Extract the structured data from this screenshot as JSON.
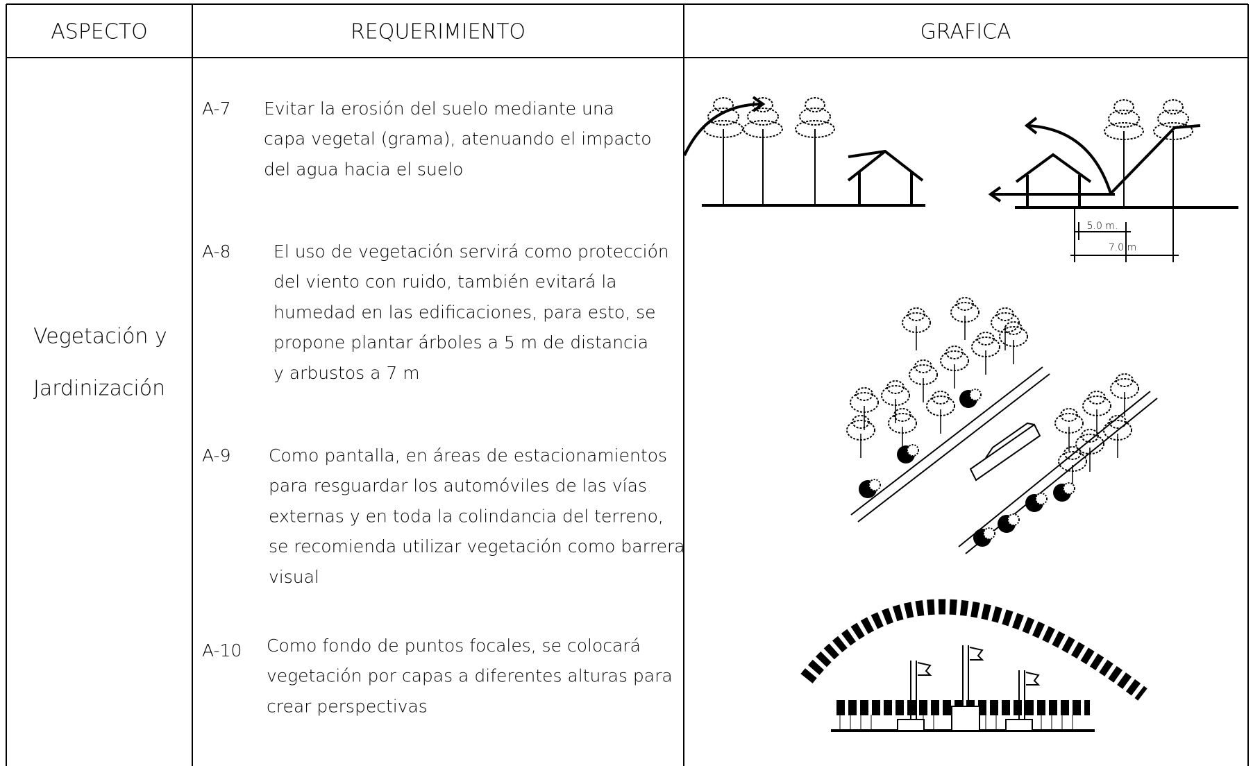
{
  "header": {
    "columns": [
      "ASPECTO",
      "REQUERIMIENTO",
      "GRAFICA"
    ]
  },
  "aspect": [
    "Vegetación y",
    "Jardinización"
  ],
  "requirements": [
    {
      "id": "A-7",
      "lines": [
        "Evitar la erosión del suelo mediante una",
        "capa vegetal (grama), atenuando el impacto",
        "del agua hacia el suelo"
      ]
    },
    {
      "id": "A-8",
      "lines": [
        "El uso de vegetación servirá como protección",
        "del viento con ruido, también evitará la",
        "humedad en las edificaciones, para esto, se",
        "propone plantar árboles a 5 m de distancia",
        "y arbustos a 7 m"
      ]
    },
    {
      "id": "A-9",
      "lines": [
        "Como pantalla, en áreas de estacionamientos",
        "para resguardar los automóviles de las vías",
        "externas y en toda la colindancia del terreno,",
        "se recomienda utilizar vegetación como barrera",
        "visual"
      ]
    },
    {
      "id": "A-10",
      "lines": [
        "Como fondo de puntos focales, se colocará",
        "vegetación por capas a diferentes alturas para",
        "crear perspectivas"
      ]
    }
  ],
  "dimensions": [
    "5.0 m.",
    "7.0 m"
  ]
}
